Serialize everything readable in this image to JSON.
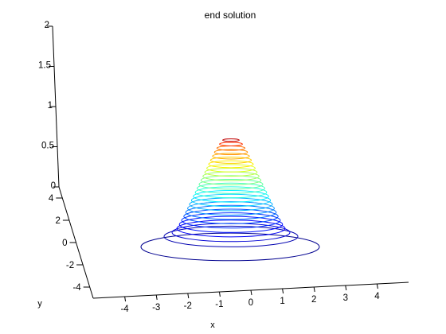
{
  "chart_data": {
    "type": "contour3",
    "title": "end solution",
    "xlabel": "x",
    "ylabel": "y",
    "zlabel": "",
    "x_ticks": [
      "-4",
      "-3",
      "-2",
      "-1",
      "0",
      "1",
      "2",
      "3",
      "4"
    ],
    "y_ticks": [
      "-4",
      "-2",
      "0",
      "2",
      "4"
    ],
    "z_ticks": [
      "0",
      "0.5",
      "1",
      "1.5",
      "2"
    ],
    "xlim": [
      -5,
      5
    ],
    "ylim": [
      -5,
      5
    ],
    "zlim": [
      0,
      2
    ],
    "colormap": "jet",
    "grid": false,
    "levels": [
      0.075,
      0.125,
      0.175,
      0.225,
      0.275,
      0.325,
      0.375,
      0.425,
      0.475,
      0.525,
      0.575,
      0.625,
      0.675,
      0.725,
      0.775,
      0.825,
      0.875,
      0.925,
      0.975,
      1.025,
      1.075,
      1.125,
      1.175,
      1.225,
      1.275,
      1.325
    ],
    "contour_radii": [
      2.8,
      2.1,
      1.85,
      1.7,
      1.62,
      1.55,
      1.48,
      1.42,
      1.36,
      1.3,
      1.24,
      1.18,
      1.12,
      1.06,
      1.0,
      0.94,
      0.88,
      0.82,
      0.76,
      0.7,
      0.64,
      0.58,
      0.52,
      0.44,
      0.36,
      0.26
    ],
    "contour_colors": [
      "#00008f",
      "#0000b0",
      "#0000d4",
      "#0000f8",
      "#0010ff",
      "#0030ff",
      "#0050ff",
      "#0070ff",
      "#0090ff",
      "#00b0ff",
      "#00d0ff",
      "#00f0ff",
      "#20ffdf",
      "#40ffbf",
      "#60ff9f",
      "#80ff7f",
      "#a0ff5f",
      "#c0ff3f",
      "#e0ff1f",
      "#ffef00",
      "#ffcf00",
      "#ffaf00",
      "#ff8f00",
      "#ff6f00",
      "#ff3000",
      "#c00000"
    ]
  }
}
